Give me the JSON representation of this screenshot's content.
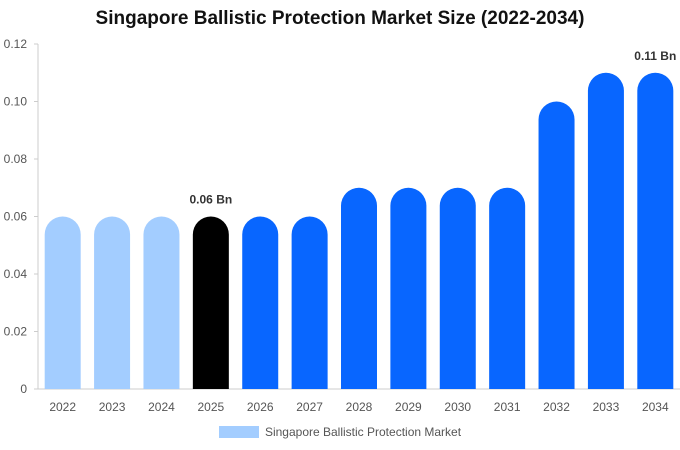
{
  "chart_data": {
    "type": "bar",
    "title": "Singapore Ballistic Protection Market Size (2022-2034)",
    "xlabel": "",
    "ylabel": "",
    "categories": [
      "2022",
      "2023",
      "2024",
      "2025",
      "2026",
      "2027",
      "2028",
      "2029",
      "2030",
      "2031",
      "2032",
      "2033",
      "2034"
    ],
    "series": [
      {
        "name": "Singapore Ballistic Protection Market",
        "values": [
          0.06,
          0.06,
          0.06,
          0.06,
          0.06,
          0.06,
          0.07,
          0.07,
          0.07,
          0.07,
          0.1,
          0.11,
          0.11
        ]
      }
    ],
    "ylim": [
      0,
      0.12
    ],
    "yticks": [
      "0",
      "0.02",
      "0.04",
      "0.06",
      "0.08",
      "0.10",
      "0.12"
    ],
    "yticks_values": [
      0,
      0.02,
      0.04,
      0.06,
      0.08,
      0.1,
      0.12
    ],
    "data_labels": [
      {
        "category": "2025",
        "text": "0.06 Bn"
      },
      {
        "category": "2034",
        "text": "0.11 Bn"
      }
    ],
    "bar_colors": {
      "historical": "#a3cdff",
      "base_year": "#000000",
      "forecast": "#0866ff"
    },
    "historical_categories": [
      "2022",
      "2023",
      "2024"
    ],
    "base_year_category": "2025",
    "legend": {
      "position": "bottom",
      "label": "Singapore Ballistic Protection Market",
      "color": "#a3cdff"
    },
    "grid": false
  }
}
